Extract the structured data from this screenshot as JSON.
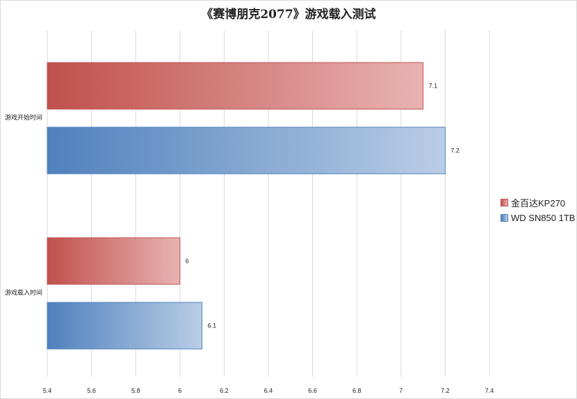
{
  "chart_data": {
    "type": "bar",
    "orientation": "horizontal",
    "title": "《赛博朋克2077》游戏载入测试",
    "categories": [
      "游戏开始时间",
      "游戏载入时间"
    ],
    "series": [
      {
        "name": "金百达KP270",
        "values": [
          7.1,
          6.0
        ],
        "color": "#c0504d"
      },
      {
        "name": "WD SN850 1TB",
        "values": [
          7.2,
          6.1
        ],
        "color": "#4f81bd"
      }
    ],
    "data_labels": [
      [
        "7.1",
        "6"
      ],
      [
        "7.2",
        "6.1"
      ]
    ],
    "xlim": [
      5.4,
      7.4
    ],
    "xticks": [
      "5.4",
      "5.6",
      "5.8",
      "6",
      "6.2",
      "6.4",
      "6.6",
      "6.8",
      "7",
      "7.2",
      "7.4"
    ],
    "grid": "vertical",
    "legend_position": "right"
  }
}
